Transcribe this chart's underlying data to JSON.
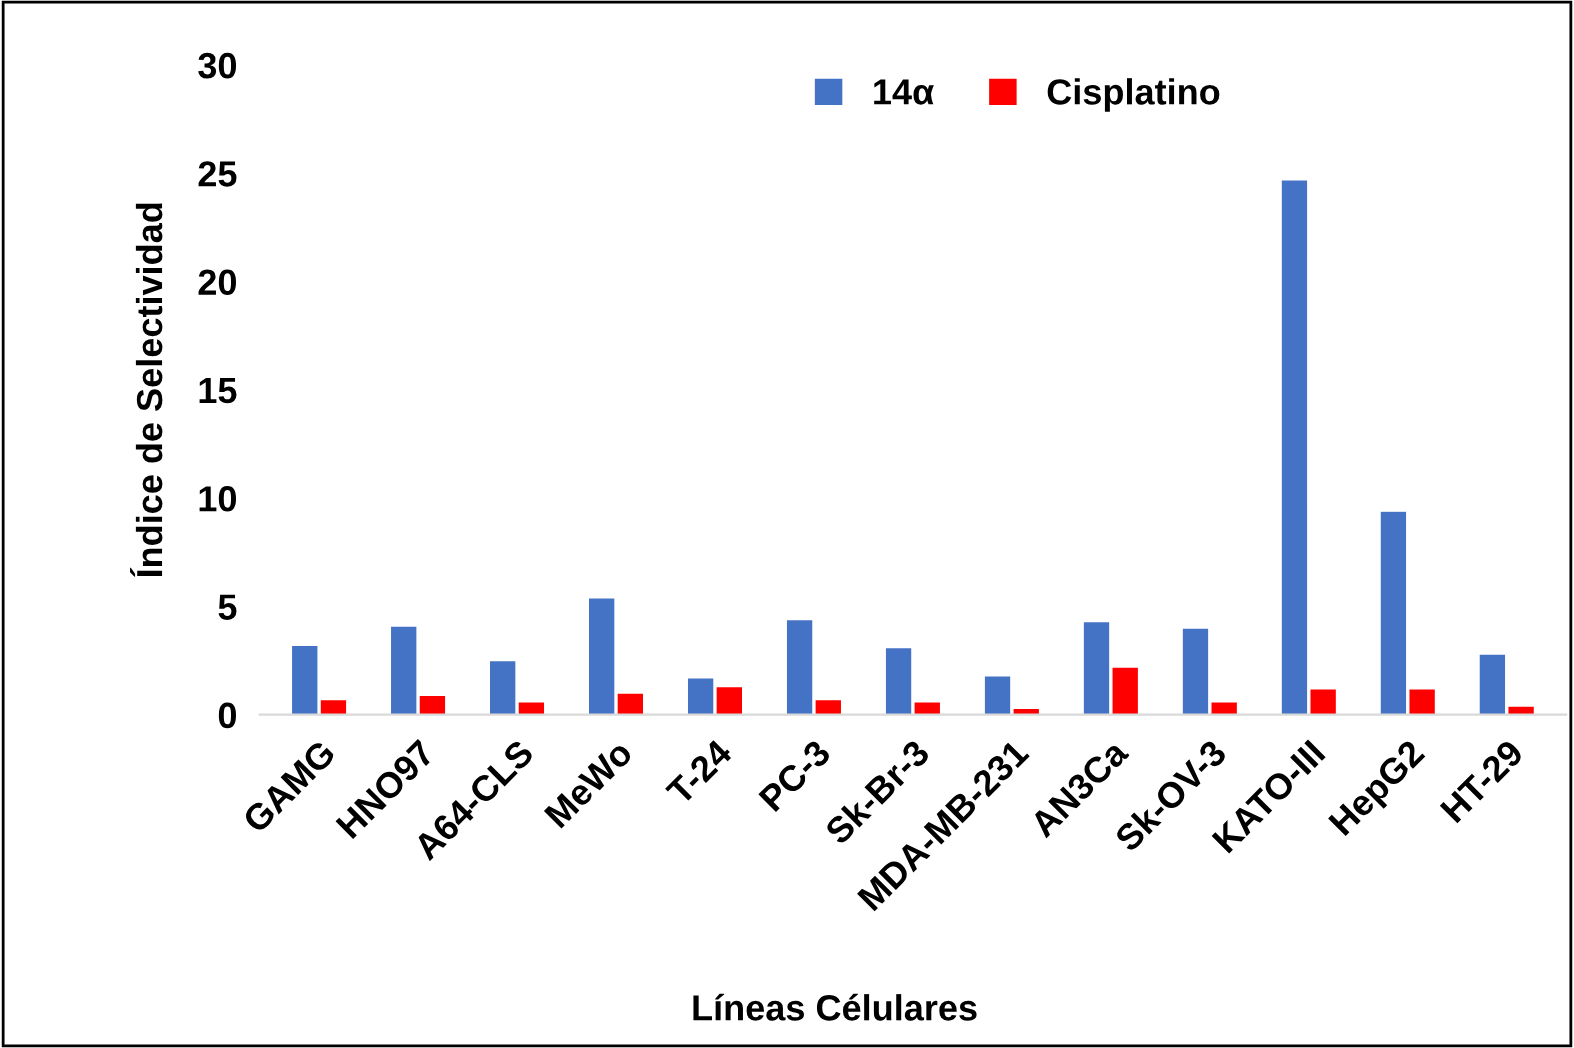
{
  "chart_data": {
    "type": "bar",
    "xlabel": "Líneas Célulares",
    "ylabel": "Índice de Selectividad",
    "categories": [
      "GAMG",
      "HNO97",
      "A64-CLS",
      "MeWo",
      "T-24",
      "PC-3",
      "Sk-Br-3",
      "MDA-MB-231",
      "AN3Ca",
      "Sk-OV-3",
      "KATO-III",
      "HepG2",
      "HT-29"
    ],
    "series": [
      {
        "name": "14α",
        "color": "#4472c4",
        "values": [
          3.2,
          4.1,
          2.5,
          5.4,
          1.7,
          4.4,
          3.1,
          1.8,
          4.3,
          4.0,
          24.7,
          9.4,
          2.8
        ]
      },
      {
        "name": "Cisplatino",
        "color": "#ff0000",
        "values": [
          0.7,
          0.9,
          0.6,
          1.0,
          1.3,
          0.7,
          0.6,
          0.3,
          2.2,
          0.6,
          1.2,
          1.2,
          0.4
        ]
      }
    ],
    "ylim": [
      0,
      30
    ],
    "yticks": [
      0,
      5,
      10,
      15,
      20,
      25,
      30
    ],
    "grid": false,
    "legend": "top"
  }
}
